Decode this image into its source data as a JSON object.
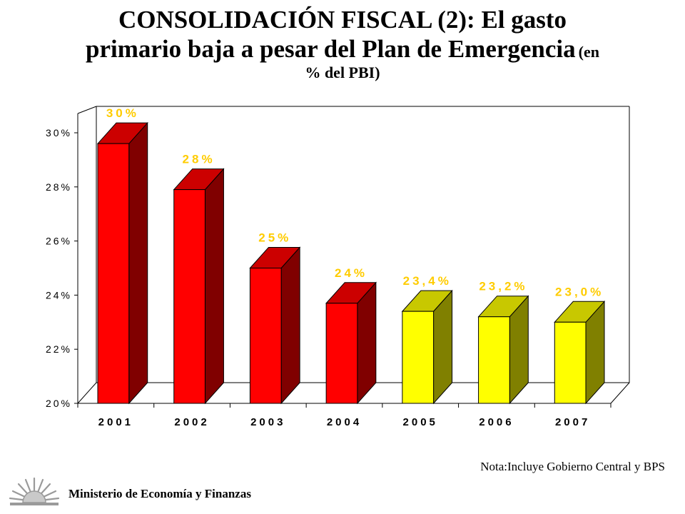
{
  "title_line1": "CONSOLIDACIÓN FISCAL (2): El gasto",
  "title_line2_main": "primario baja a pesar del Plan de Emergencia",
  "title_line2_small": "(en",
  "title_line3": "% del PBI)",
  "note": "Nota:Incluye Gobierno Central y BPS",
  "ministry": "Ministerio de Economía y Finanzas",
  "logo_icon": "sun-logo-icon",
  "chart_data": {
    "type": "bar",
    "three_d": true,
    "categories": [
      "2001",
      "2002",
      "2003",
      "2004",
      "2005",
      "2006",
      "2007"
    ],
    "values": [
      29.6,
      27.9,
      25.0,
      23.7,
      23.4,
      23.2,
      23.0
    ],
    "data_labels": [
      "30%",
      "28%",
      "25%",
      "24%",
      "23,4%",
      "23,2%",
      "23,0%"
    ],
    "yticks": [
      "20%",
      "22%",
      "24%",
      "26%",
      "28%",
      "30%"
    ],
    "ylim": [
      20,
      30
    ],
    "grid": false,
    "legend": "none",
    "colors": {
      "actual_front": "#ff0000",
      "actual_side": "#800000",
      "actual_top": "#cc0000",
      "projected_front": "#ffff00",
      "projected_side": "#808000",
      "projected_top": "#c8c800",
      "label": "#ffcc00"
    },
    "projected_from_index": 4
  }
}
